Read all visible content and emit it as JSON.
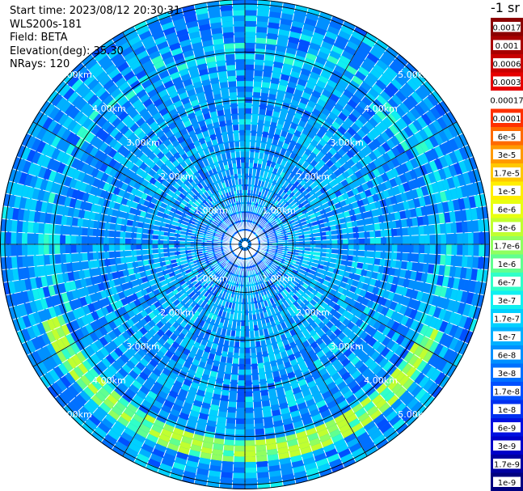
{
  "header": {
    "start_time": "Start time: 2023/08/12 20:30:31",
    "instrument": "WLS200s-181",
    "field": "Field: BETA",
    "elevation": "Elevation(deg): 35.30",
    "nrays": "NRays: 120"
  },
  "colorbar": {
    "unit": "-1 sr",
    "entries": [
      {
        "label": "0.0017",
        "color": "#8b0000"
      },
      {
        "label": "0.001",
        "color": "#a80000"
      },
      {
        "label": "0.0006",
        "color": "#c80000"
      },
      {
        "label": "0.0003",
        "color": "#e60000"
      },
      {
        "label": "0.00017",
        "color": "#ffffff"
      },
      {
        "label": "0.0001",
        "color": "#ff3000"
      },
      {
        "label": "6e-5",
        "color": "#ff6a00"
      },
      {
        "label": "3e-5",
        "color": "#ff9a00"
      },
      {
        "label": "1.7e-5",
        "color": "#ffc800"
      },
      {
        "label": "1e-5",
        "color": "#ffee00"
      },
      {
        "label": "6e-6",
        "color": "#e8ff10"
      },
      {
        "label": "3e-6",
        "color": "#c0ff30"
      },
      {
        "label": "1.7e-6",
        "color": "#90ff60"
      },
      {
        "label": "1e-6",
        "color": "#60ff90"
      },
      {
        "label": "6e-7",
        "color": "#30ffc8"
      },
      {
        "label": "3e-7",
        "color": "#10f0f0"
      },
      {
        "label": "1.7e-7",
        "color": "#00d0ff"
      },
      {
        "label": "1e-7",
        "color": "#00b0ff"
      },
      {
        "label": "6e-8",
        "color": "#0090ff"
      },
      {
        "label": "3e-8",
        "color": "#0070ff"
      },
      {
        "label": "1.7e-8",
        "color": "#0050ff"
      },
      {
        "label": "1e-8",
        "color": "#0030f0"
      },
      {
        "label": "6e-9",
        "color": "#0010e0"
      },
      {
        "label": "3e-9",
        "color": "#0000c8"
      },
      {
        "label": "1.7e-9",
        "color": "#0000a0"
      },
      {
        "label": "1e-9",
        "color": "#000080"
      }
    ]
  },
  "range_rings": {
    "labels": [
      "1.00km",
      "2.00km",
      "3.00km",
      "4.00km",
      "5.00km"
    ],
    "km": [
      1,
      2,
      3,
      4,
      5
    ],
    "label_color": "#ffffff"
  },
  "plot": {
    "rays": 120,
    "gates": 45,
    "max_range_km": 5.1,
    "palette": [
      "#0050ff",
      "#0070ff",
      "#0090ff",
      "#00b0ff",
      "#00d0ff",
      "#10f0f0",
      "#30ffc8",
      "#60ff90",
      "#90ff60",
      "#c0ff30",
      "#e8ff10"
    ],
    "feature_ring_km": 4.3,
    "feature_arc_deg": [
      95,
      240
    ]
  }
}
